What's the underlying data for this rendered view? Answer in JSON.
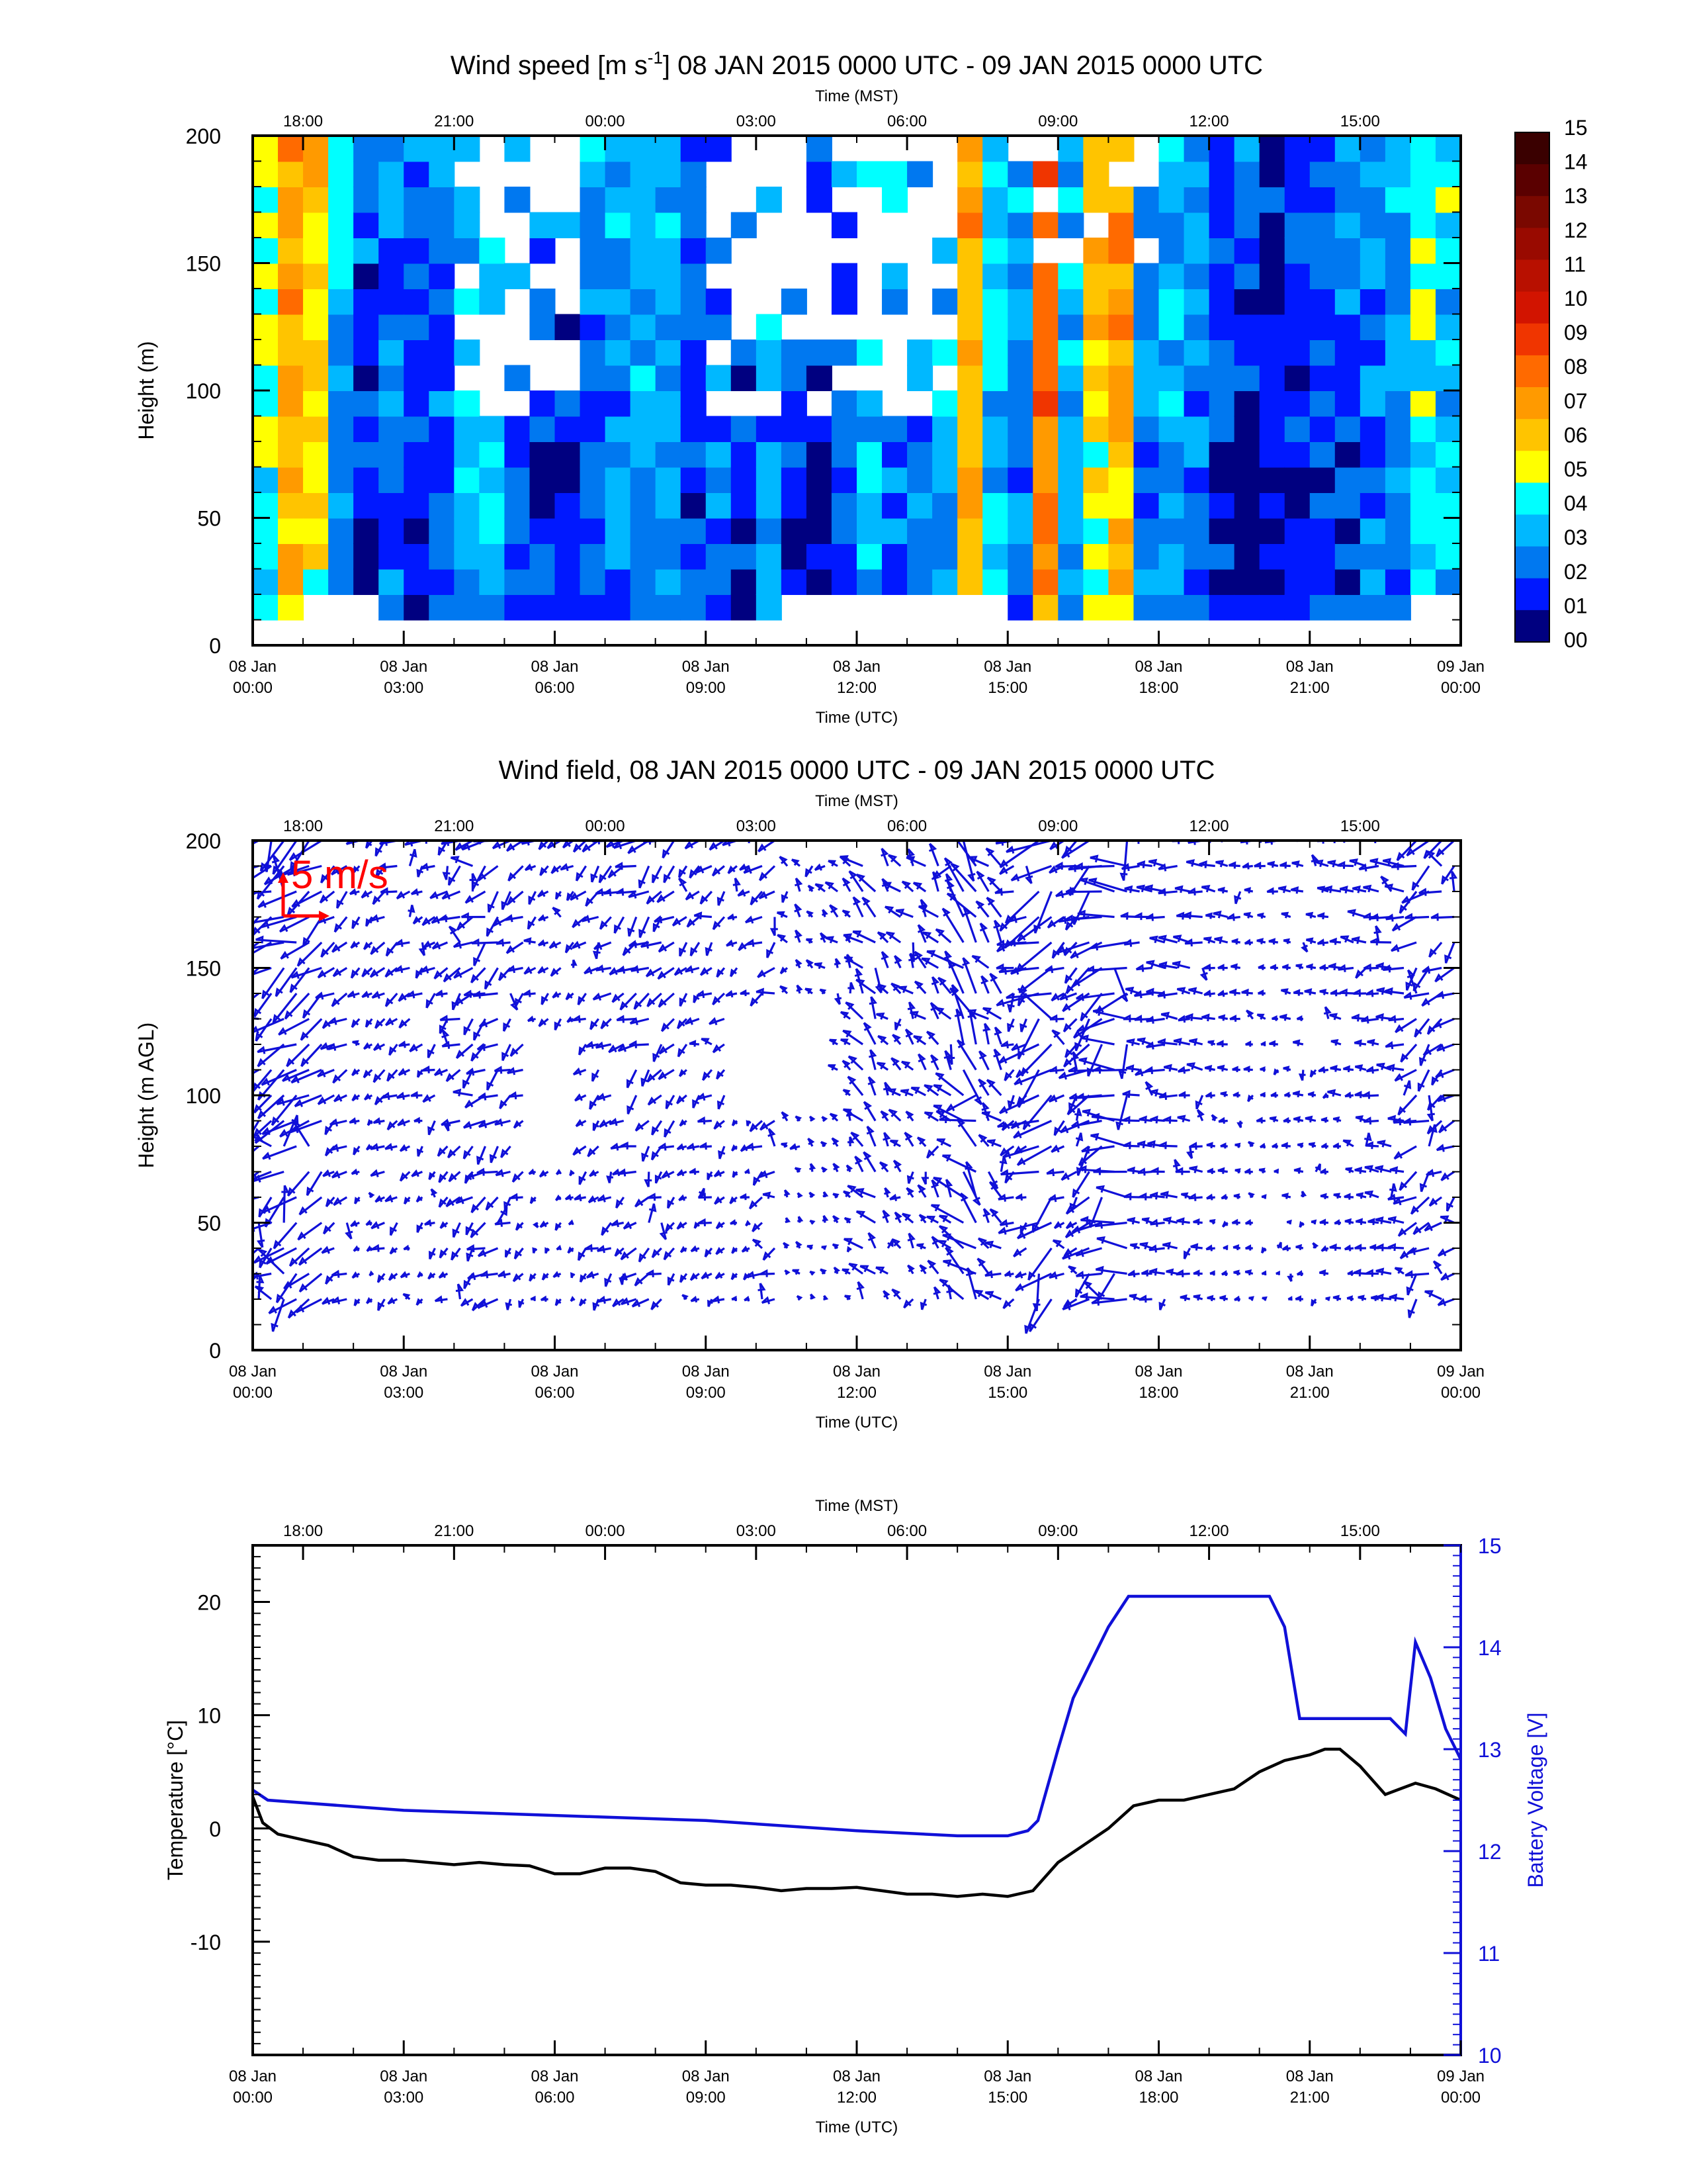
{
  "chart_data": [
    {
      "type": "heatmap",
      "title": "Wind speed [m s",
      "title_sup": "-1",
      "title_rest": "] 08 JAN 2015 0000 UTC - 09 JAN 2015 0000 UTC",
      "xlabel": "Time (UTC)",
      "x2label": "Time (MST)",
      "ylabel": "Height (m)",
      "xlim_hours": [
        0,
        24
      ],
      "ylim": [
        0,
        200
      ],
      "yticks": [
        "0",
        "50",
        "100",
        "150",
        "200"
      ],
      "xticks": [
        "08 Jan|00:00",
        "08 Jan|03:00",
        "08 Jan|06:00",
        "08 Jan|09:00",
        "08 Jan|12:00",
        "08 Jan|15:00",
        "08 Jan|18:00",
        "08 Jan|21:00",
        "09 Jan|00:00"
      ],
      "x2ticks": [
        "18:00",
        "21:00",
        "00:00",
        "03:00",
        "06:00",
        "09:00",
        "12:00",
        "15:00"
      ],
      "colorbar_labels": [
        "15",
        "14",
        "13",
        "12",
        "11",
        "10",
        "09",
        "08",
        "07",
        "06",
        "05",
        "04",
        "03",
        "02",
        "01",
        "00"
      ],
      "colorbar_colors": [
        "#3a0000",
        "#5a0000",
        "#7a0800",
        "#990a00",
        "#b81000",
        "#d21400",
        "#f03500",
        "#ff6a00",
        "#ff9a00",
        "#ffc400",
        "#ffff00",
        "#00ffff",
        "#00b8ff",
        "#0078f0",
        "#0018ff",
        "#000080"
      ],
      "speed_by_hour": [
        4.5,
        6.5,
        5.5,
        2.5,
        1,
        2,
        1.5,
        1.8,
        2.8,
        3.5,
        2.2,
        1.2,
        1,
        2,
        2.2,
        3,
        2.5,
        1.5,
        1.8,
        1,
        2.5,
        1,
        0.6,
        1.2,
        3.5,
        2,
        2.2,
        2.8,
        6.5,
        3,
        2.2,
        7.5,
        2.4,
        5.5,
        6.5,
        2.2,
        2.5,
        2,
        1.2,
        0.8,
        0.6,
        0.8,
        1,
        1.5,
        2,
        2.5,
        4,
        3
      ]
    },
    {
      "type": "scatter",
      "subtype": "wind-vectors",
      "title": "Wind field, 08 JAN 2015 0000 UTC - 09 JAN 2015 0000 UTC",
      "xlabel": "Time (UTC)",
      "x2label": "Time (MST)",
      "ylabel": "Height (m AGL)",
      "xlim_hours": [
        0,
        24
      ],
      "ylim": [
        0,
        200
      ],
      "yticks": [
        "0",
        "50",
        "100",
        "150",
        "200"
      ],
      "xticks": [
        "08 Jan|00:00",
        "08 Jan|03:00",
        "08 Jan|06:00",
        "08 Jan|09:00",
        "08 Jan|12:00",
        "08 Jan|15:00",
        "08 Jan|18:00",
        "08 Jan|21:00",
        "09 Jan|00:00"
      ],
      "x2ticks": [
        "18:00",
        "21:00",
        "00:00",
        "03:00",
        "06:00",
        "09:00",
        "12:00",
        "15:00"
      ],
      "reference_label": "5 m/s",
      "reference_color": "#ff0000",
      "vector_color": "#1010d8"
    },
    {
      "type": "line",
      "xlabel": "Time (UTC)",
      "x2label": "Time (MST)",
      "ylabel": "Temperature [°C]",
      "y2label": "Battery Voltage [V]",
      "xlim_hours": [
        0,
        24
      ],
      "ylim": [
        -20,
        25
      ],
      "y2lim": [
        10,
        15
      ],
      "yticks": [
        "20",
        "10",
        "0",
        "-10"
      ],
      "y2ticks": [
        "15",
        "14",
        "13",
        "12",
        "11",
        "10"
      ],
      "xticks": [
        "08 Jan|00:00",
        "08 Jan|03:00",
        "08 Jan|06:00",
        "08 Jan|09:00",
        "08 Jan|12:00",
        "08 Jan|15:00",
        "08 Jan|18:00",
        "08 Jan|21:00",
        "09 Jan|00:00"
      ],
      "x2ticks": [
        "18:00",
        "21:00",
        "00:00",
        "03:00",
        "06:00",
        "09:00",
        "12:00",
        "15:00"
      ],
      "series": [
        {
          "name": "Temperature",
          "color": "#000000",
          "x_hours": [
            0,
            0.2,
            0.5,
            1,
            1.5,
            2,
            2.5,
            3,
            3.5,
            4,
            4.5,
            5,
            5.5,
            6,
            6.5,
            7,
            7.5,
            8,
            8.5,
            9,
            9.5,
            10,
            10.5,
            11,
            11.5,
            12,
            12.5,
            13,
            13.5,
            14,
            14.5,
            15,
            15.5,
            16,
            16.5,
            17,
            17.5,
            18,
            18.5,
            19,
            19.5,
            20,
            20.5,
            21,
            21.3,
            21.6,
            22,
            22.5,
            22.8,
            23.1,
            23.5,
            24
          ],
          "values": [
            2.8,
            0.5,
            -0.5,
            -1,
            -1.5,
            -2.5,
            -2.8,
            -2.8,
            -3,
            -3.2,
            -3,
            -3.2,
            -3.3,
            -4,
            -4,
            -3.5,
            -3.5,
            -3.8,
            -4.8,
            -5,
            -5,
            -5.2,
            -5.5,
            -5.3,
            -5.3,
            -5.2,
            -5.5,
            -5.8,
            -5.8,
            -6,
            -5.8,
            -6,
            -5.5,
            -3,
            -1.5,
            0,
            2,
            2.5,
            2.5,
            3,
            3.5,
            5,
            6,
            6.5,
            7,
            7,
            5.5,
            3,
            3.5,
            4,
            3.5,
            2.5
          ]
        },
        {
          "name": "Battery Voltage",
          "color": "#1010d8",
          "axis": "right",
          "x_hours": [
            0,
            0.3,
            3,
            6,
            9,
            12,
            14,
            15,
            15.4,
            15.6,
            16,
            16.3,
            16.6,
            17,
            17.4,
            17.8,
            18,
            18.5,
            19,
            19.5,
            20,
            20.2,
            20.5,
            20.8,
            21.2,
            21.6,
            22,
            22.4,
            22.6,
            22.9,
            23.1,
            23.4,
            23.7,
            24
          ],
          "values": [
            12.6,
            12.5,
            12.4,
            12.35,
            12.3,
            12.2,
            12.15,
            12.15,
            12.2,
            12.3,
            13,
            13.5,
            13.8,
            14.2,
            14.5,
            14.5,
            14.5,
            14.5,
            14.5,
            14.5,
            14.5,
            14.5,
            14.2,
            13.3,
            13.3,
            13.3,
            13.3,
            13.3,
            13.3,
            13.15,
            14.05,
            13.7,
            13.2,
            12.9
          ]
        }
      ]
    }
  ]
}
